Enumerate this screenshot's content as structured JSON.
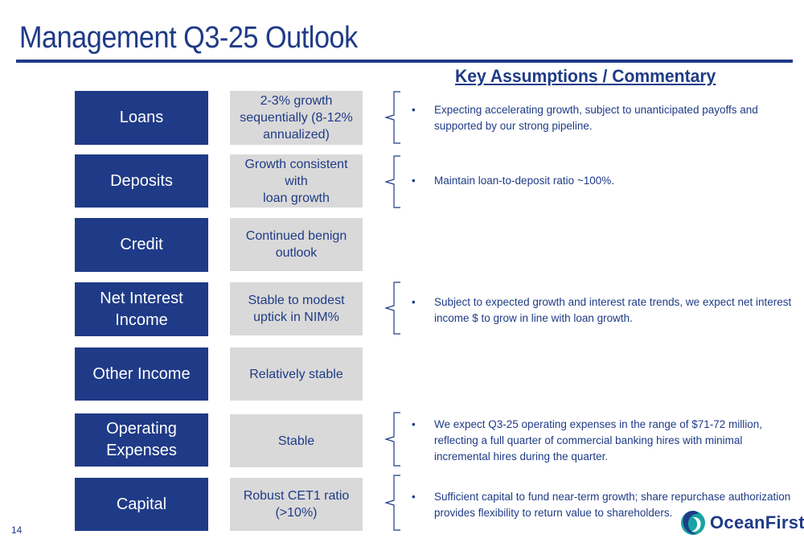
{
  "title": "Management Q3-25 Outlook",
  "commentary_heading": "Key Assumptions / Commentary",
  "rows": [
    {
      "category": "Loans",
      "outlook": "2-3% growth\nsequentially (8-12%\nannualized)",
      "commentary": "Expecting accelerating growth, subject to unanticipated payoffs and supported by our strong pipeline."
    },
    {
      "category": "Deposits",
      "outlook": "Growth consistent with\nloan growth",
      "commentary": "Maintain loan-to-deposit ratio ~100%."
    },
    {
      "category": "Credit",
      "outlook": "Continued benign\noutlook",
      "commentary": ""
    },
    {
      "category": "Net Interest\nIncome",
      "outlook": "Stable to modest\nuptick in NIM%",
      "commentary": "Subject to expected growth and interest rate trends, we expect net interest income $ to grow in line with loan growth."
    },
    {
      "category": "Other Income",
      "outlook": "Relatively stable",
      "commentary": ""
    },
    {
      "category": "Operating\nExpenses",
      "outlook": "Stable",
      "commentary": "We expect Q3-25 operating expenses in the range of $71-72 million, reflecting  a full quarter of commercial banking hires with minimal incremental hires during the quarter."
    },
    {
      "category": "Capital",
      "outlook": "Robust CET1 ratio\n(>10%)",
      "commentary": "Sufficient capital to fund near-term growth; share repurchase authorization provides flexibility to return value to shareholders."
    }
  ],
  "bullet_char": "•",
  "page_number": "14",
  "logo_text": "OceanFirst",
  "colors": {
    "brand_navy": "#1f3b87",
    "outlook_gray": "#d9d9d9",
    "logo_teal": "#1aa3a3"
  }
}
